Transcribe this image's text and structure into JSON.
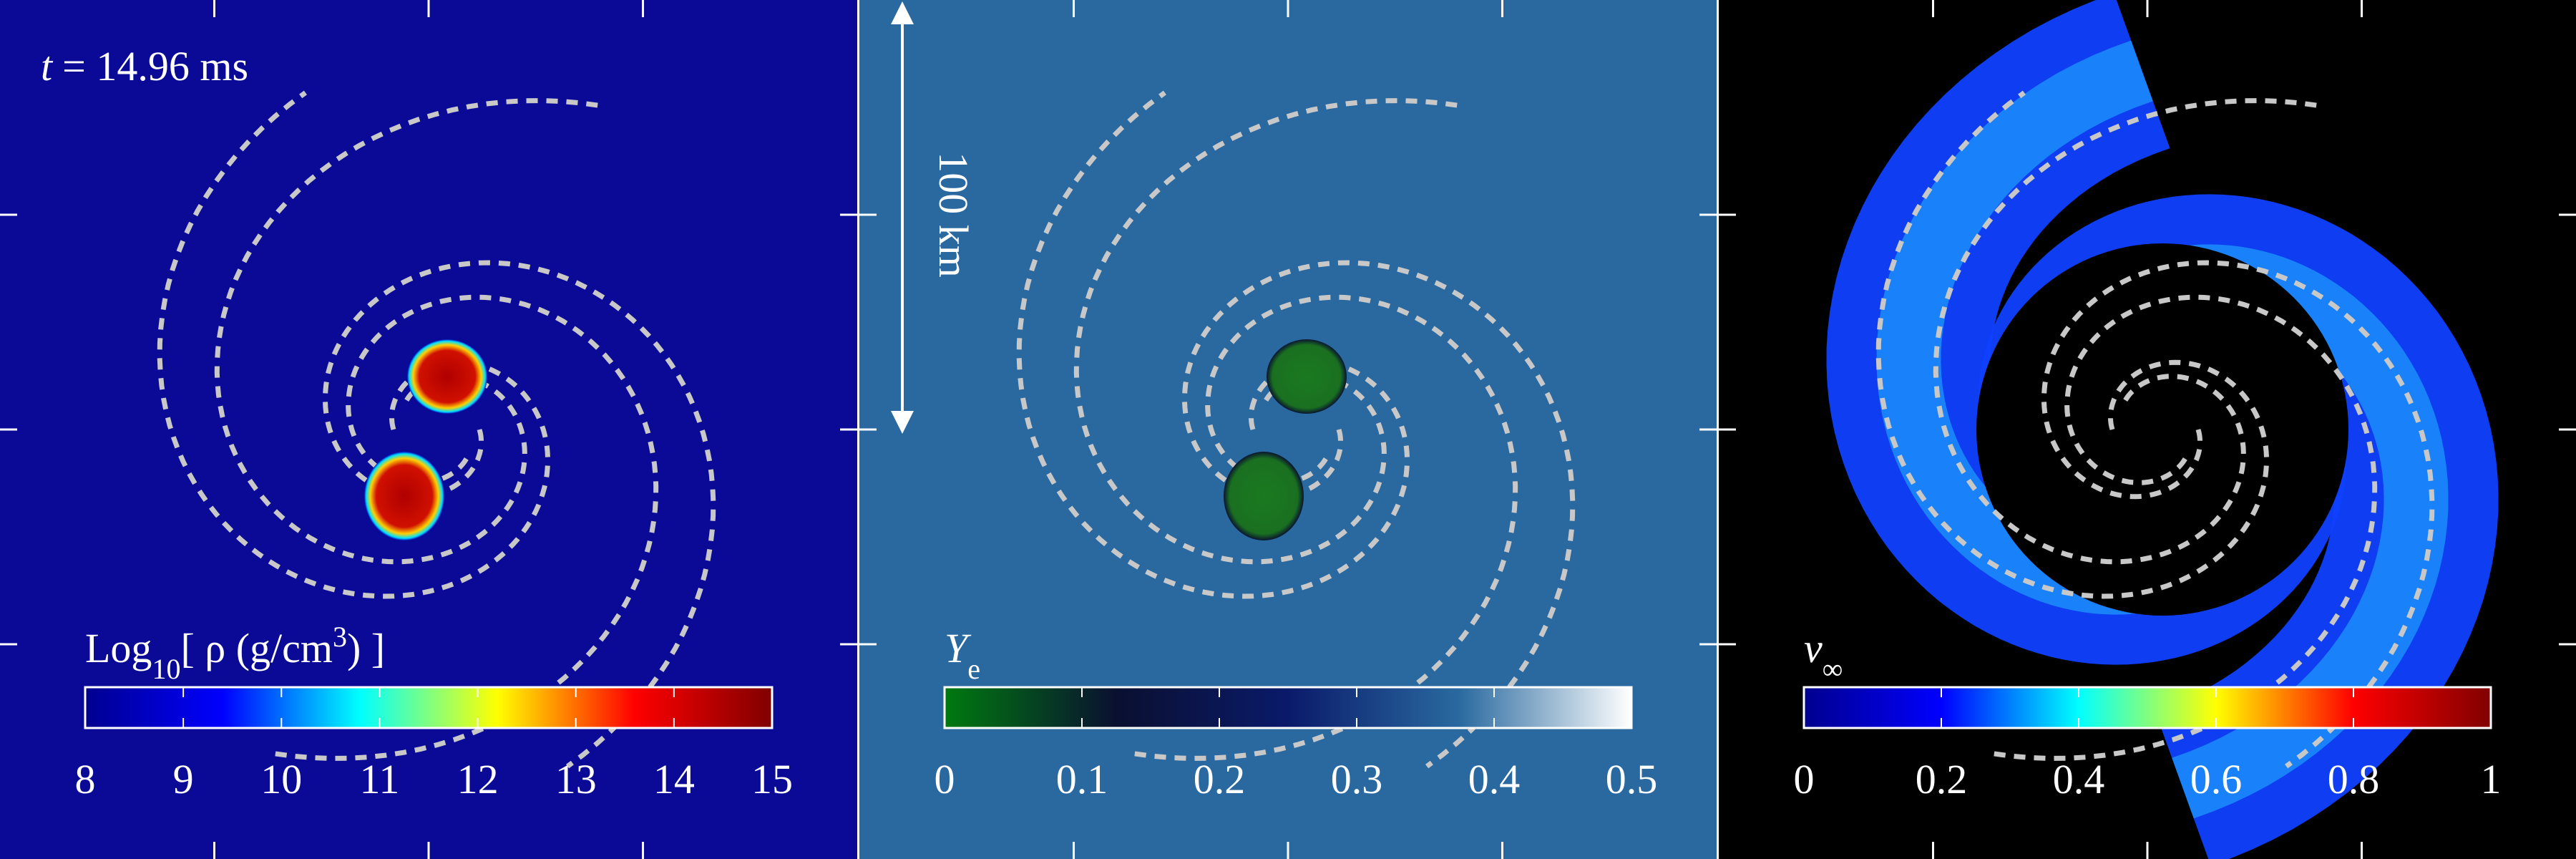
{
  "panels": [
    {
      "annotation": [
        "t",
        "= 14.96 ms"
      ],
      "colorbar": {
        "label": [
          "Log",
          "10",
          "[ ρ (g/cm",
          "3",
          ") ]"
        ],
        "lim": [
          8,
          15
        ],
        "ticks": [
          8,
          9,
          10,
          11,
          12,
          13,
          14,
          15
        ],
        "colors": [
          "#00008f",
          "#0000ff",
          "#00ffff",
          "#ffff00",
          "#ff0000",
          "#800000"
        ]
      }
    },
    {
      "scale_bar": "100 km",
      "colorbar": {
        "label": [
          "Y",
          "e"
        ],
        "lim": [
          0,
          0.5
        ],
        "ticks": [
          0,
          0.1,
          0.2,
          0.3,
          0.4,
          0.5
        ],
        "colors": [
          "#007a10",
          "#0a1030",
          "#0a1a6a",
          "#2a6aa0",
          "#ffffff"
        ]
      }
    },
    {
      "colorbar": {
        "label": [
          "v",
          "∞"
        ],
        "lim": [
          0,
          1
        ],
        "ticks": [
          0,
          0.2,
          0.4,
          0.6,
          0.8,
          1
        ],
        "colors": [
          "#00008f",
          "#0000ff",
          "#00ffff",
          "#ffff00",
          "#ff0000",
          "#800000"
        ]
      }
    }
  ]
}
